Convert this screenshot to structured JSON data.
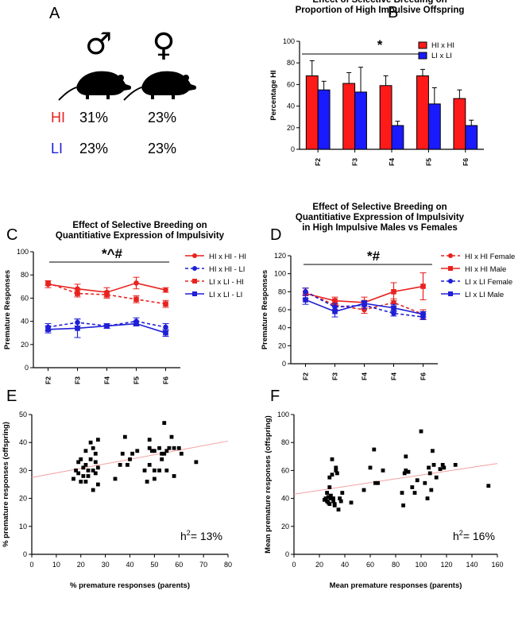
{
  "panel_a": {
    "label": "A",
    "male_symbol": "♂",
    "female_symbol": "♀",
    "rows": [
      {
        "name": "HI",
        "color": "#e8231f",
        "male": "31%",
        "female": "23%"
      },
      {
        "name": "LI",
        "color": "#1f1fd6",
        "male": "23%",
        "female": "23%"
      }
    ]
  },
  "chart_data": [
    {
      "id": "B",
      "type": "bar",
      "panel_label": "B",
      "title": [
        "Effect of Selective Breeding on",
        "Proportion of High Impulsive Offspring"
      ],
      "ylabel": "Percentage HI",
      "xlabel": "",
      "ylim": [
        0,
        100
      ],
      "yticks": [
        0,
        20,
        40,
        60,
        80,
        100
      ],
      "categories": [
        "F2",
        "F3",
        "F4",
        "F5",
        "F6"
      ],
      "series": [
        {
          "name": "HI x HI",
          "color": "#ff1a1a",
          "values": [
            68,
            61,
            59,
            68,
            47
          ],
          "errors": [
            14,
            10,
            9,
            6,
            8
          ]
        },
        {
          "name": "LI x LI",
          "color": "#1a1aff",
          "values": [
            55,
            53,
            22,
            42,
            22
          ],
          "errors": [
            8,
            23,
            4,
            15,
            5
          ]
        }
      ],
      "annotation": "*",
      "legend_position": "top-right"
    },
    {
      "id": "C",
      "type": "line",
      "panel_label": "C",
      "title": [
        "Effect of Selective  Breeding on",
        "Quantitiative Expression of Impulsivity"
      ],
      "ylabel": "Premature Responses",
      "xlabel": "",
      "ylim": [
        0,
        100
      ],
      "yticks": [
        0,
        20,
        40,
        60,
        80,
        100
      ],
      "categories": [
        "F2",
        "F3",
        "F4",
        "F5",
        "F6"
      ],
      "series": [
        {
          "name": "HI x HI - HI",
          "color": "#e8231f",
          "marker": "circle",
          "dash": false,
          "values": [
            72,
            68,
            65,
            73,
            67
          ],
          "errors": [
            3,
            4,
            4,
            5,
            2
          ]
        },
        {
          "name": "HI x HI - LI",
          "color": "#1f1fd6",
          "marker": "circle",
          "dash": true,
          "values": [
            35,
            39,
            36,
            40,
            35
          ],
          "errors": [
            3,
            3,
            2,
            3,
            3
          ]
        },
        {
          "name": "LI x LI - HI",
          "color": "#e8231f",
          "marker": "square",
          "dash": true,
          "values": [
            73,
            64,
            63,
            59,
            55
          ],
          "errors": [
            2,
            3,
            3,
            3,
            3
          ]
        },
        {
          "name": "LI x LI - LI",
          "color": "#1f1fd6",
          "marker": "square",
          "dash": false,
          "values": [
            33,
            34,
            36,
            38,
            30
          ],
          "errors": [
            3,
            8,
            2,
            2,
            3
          ]
        }
      ],
      "annotation": "*^#",
      "legend_position": "right"
    },
    {
      "id": "D",
      "type": "line",
      "panel_label": "D",
      "title": [
        "Effect of Selective Breeding on",
        "Quantitiative Expression of Impulsivity",
        "in High Impulsive Males vs Females"
      ],
      "ylabel": "Premature Responses",
      "xlabel": "",
      "ylim": [
        0,
        120
      ],
      "yticks": [
        0,
        20,
        40,
        60,
        80,
        100,
        120
      ],
      "categories": [
        "F2",
        "F3",
        "F4",
        "F4",
        "F6"
      ],
      "series": [
        {
          "name": "HI x HI Female",
          "color": "#e8231f",
          "marker": "circle",
          "dash": true,
          "values": [
            80,
            65,
            60,
            68,
            55
          ],
          "errors": [
            4,
            5,
            4,
            4,
            5
          ]
        },
        {
          "name": "HI x HI Male",
          "color": "#e8231f",
          "marker": "square",
          "dash": false,
          "values": [
            78,
            70,
            68,
            80,
            86
          ],
          "errors": [
            6,
            4,
            6,
            10,
            15
          ]
        },
        {
          "name": "LI x LI Female",
          "color": "#1f1fd6",
          "marker": "circle",
          "dash": true,
          "values": [
            80,
            63,
            65,
            56,
            52
          ],
          "errors": [
            4,
            4,
            4,
            3,
            3
          ]
        },
        {
          "name": "LI x LI Male",
          "color": "#1f1fd6",
          "marker": "square",
          "dash": false,
          "values": [
            71,
            58,
            67,
            62,
            55
          ],
          "errors": [
            5,
            6,
            3,
            4,
            3
          ]
        }
      ],
      "annotation": "*#",
      "legend_position": "right"
    },
    {
      "id": "E",
      "type": "scatter",
      "panel_label": "E",
      "xlabel": "% premature responses (parents)",
      "ylabel": "% premature responses (offspring)",
      "xlim": [
        0,
        80
      ],
      "ylim": [
        0,
        50
      ],
      "xticks": [
        0,
        10,
        20,
        30,
        40,
        50,
        60,
        70,
        80
      ],
      "yticks": [
        0,
        10,
        20,
        30,
        40,
        50
      ],
      "annotation_label": "h",
      "annotation_sup": "2",
      "annotation_value": "= 13%",
      "fit": {
        "x0": 0,
        "y0": 27.5,
        "x1": 80,
        "y1": 40.5,
        "color": "#f2a0a0"
      },
      "points": [
        [
          17,
          27
        ],
        [
          18,
          30
        ],
        [
          19,
          33
        ],
        [
          19,
          29
        ],
        [
          20,
          26
        ],
        [
          20,
          34
        ],
        [
          21,
          31
        ],
        [
          21,
          28
        ],
        [
          22,
          26
        ],
        [
          22,
          32
        ],
        [
          22,
          37
        ],
        [
          23,
          28
        ],
        [
          23,
          30
        ],
        [
          24,
          34
        ],
        [
          24,
          40
        ],
        [
          25,
          38
        ],
        [
          25,
          30
        ],
        [
          25,
          23
        ],
        [
          26,
          36
        ],
        [
          26,
          33
        ],
        [
          26,
          29
        ],
        [
          27,
          31
        ],
        [
          27,
          25
        ],
        [
          27,
          41
        ],
        [
          34,
          27
        ],
        [
          36,
          32
        ],
        [
          37,
          36
        ],
        [
          38,
          42
        ],
        [
          39,
          32
        ],
        [
          40,
          34
        ],
        [
          41,
          36
        ],
        [
          43,
          37
        ],
        [
          46,
          30
        ],
        [
          47,
          26
        ],
        [
          48,
          38
        ],
        [
          48,
          32
        ],
        [
          48,
          41
        ],
        [
          49,
          37
        ],
        [
          50,
          30
        ],
        [
          50,
          27
        ],
        [
          50,
          37
        ],
        [
          52,
          38
        ],
        [
          52,
          30
        ],
        [
          53,
          34
        ],
        [
          53,
          36
        ],
        [
          54,
          47
        ],
        [
          54,
          36
        ],
        [
          55,
          30
        ],
        [
          55,
          37
        ],
        [
          56,
          38
        ],
        [
          57,
          42
        ],
        [
          58,
          38
        ],
        [
          58,
          28
        ],
        [
          60,
          38
        ],
        [
          61,
          36
        ],
        [
          67,
          33
        ]
      ]
    },
    {
      "id": "F",
      "type": "scatter",
      "panel_label": "F",
      "xlabel": "Mean premature responses (parents)",
      "ylabel": "Mean premature responses (offspring)",
      "xlim": [
        0,
        160
      ],
      "ylim": [
        0,
        100
      ],
      "xticks": [
        0,
        20,
        40,
        60,
        80,
        100,
        120,
        140,
        160
      ],
      "yticks": [
        0,
        20,
        40,
        60,
        80,
        100
      ],
      "annotation_label": "h",
      "annotation_sup": "2",
      "annotation_value": "= 16%",
      "fit": {
        "x0": 0,
        "y0": 43,
        "x1": 160,
        "y1": 65,
        "color": "#f2a0a0"
      },
      "points": [
        [
          24,
          39
        ],
        [
          25,
          40
        ],
        [
          26,
          38
        ],
        [
          26,
          44
        ],
        [
          27,
          41
        ],
        [
          27,
          37
        ],
        [
          28,
          36
        ],
        [
          28,
          48
        ],
        [
          28,
          55
        ],
        [
          29,
          42
        ],
        [
          29,
          40
        ],
        [
          30,
          68
        ],
        [
          30,
          57
        ],
        [
          31,
          40
        ],
        [
          31,
          38
        ],
        [
          32,
          36
        ],
        [
          32,
          35
        ],
        [
          33,
          62
        ],
        [
          33,
          60
        ],
        [
          34,
          58
        ],
        [
          35,
          32
        ],
        [
          36,
          40
        ],
        [
          37,
          38
        ],
        [
          38,
          44
        ],
        [
          45,
          37
        ],
        [
          55,
          46
        ],
        [
          60,
          62
        ],
        [
          63,
          75
        ],
        [
          64,
          51
        ],
        [
          66,
          51
        ],
        [
          70,
          60
        ],
        [
          85,
          44
        ],
        [
          86,
          35
        ],
        [
          87,
          58
        ],
        [
          88,
          70
        ],
        [
          88,
          60
        ],
        [
          90,
          59
        ],
        [
          93,
          48
        ],
        [
          95,
          44
        ],
        [
          97,
          53
        ],
        [
          100,
          88
        ],
        [
          103,
          51
        ],
        [
          105,
          40
        ],
        [
          106,
          62
        ],
        [
          107,
          58
        ],
        [
          108,
          46
        ],
        [
          109,
          74
        ],
        [
          110,
          64
        ],
        [
          112,
          55
        ],
        [
          115,
          61
        ],
        [
          117,
          64
        ],
        [
          118,
          62
        ],
        [
          127,
          64
        ],
        [
          153,
          49
        ]
      ]
    }
  ]
}
